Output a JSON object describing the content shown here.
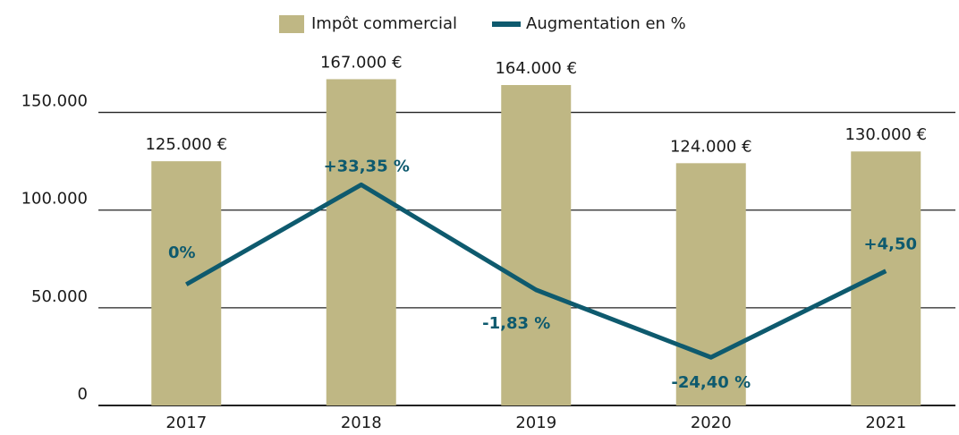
{
  "chart_data": {
    "type": "bar",
    "categories": [
      "2017",
      "2018",
      "2019",
      "2020",
      "2021"
    ],
    "series": [
      {
        "name": "Impôt commercial",
        "type": "bar",
        "color": "#bfb784",
        "values": [
          125000,
          167000,
          164000,
          124000,
          130000
        ],
        "value_labels": [
          "125.000 €",
          "167.000 €",
          "164.000 €",
          "124.000 €",
          "130.000 €"
        ]
      },
      {
        "name": "Augmentation en %",
        "type": "line",
        "axis": "y2",
        "color": "#0e5a6e",
        "values": [
          0,
          33.35,
          -1.83,
          -24.4,
          4.5
        ],
        "value_labels": [
          "0%",
          "+33,35 %",
          "-1,83 %",
          "-24,40 %",
          "+4,50"
        ]
      }
    ],
    "ylim": [
      0,
      175000
    ],
    "yticks": [
      0,
      {
        "value": 50000,
        "label": "50.000"
      },
      {
        "value": 100000,
        "label": "100.000"
      },
      {
        "value": 150000,
        "label": "150.000"
      }
    ],
    "y2lim": [
      -40.5,
      73.9
    ],
    "grid": true,
    "legend": "top"
  }
}
